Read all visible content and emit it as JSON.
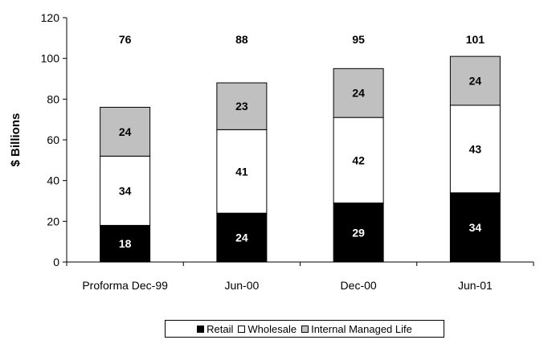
{
  "chart_data": {
    "type": "bar",
    "stacked": true,
    "categories": [
      "Proforma Dec-99",
      "Jun-00",
      "Dec-00",
      "Jun-01"
    ],
    "series": [
      {
        "name": "Retail",
        "values": [
          18,
          24,
          29,
          34
        ],
        "color": "#000000",
        "label_color": "#ffffff"
      },
      {
        "name": "Wholesale",
        "values": [
          34,
          41,
          42,
          43
        ],
        "color": "#ffffff",
        "label_color": "#000000"
      },
      {
        "name": "Internal Managed Life",
        "values": [
          24,
          23,
          24,
          24
        ],
        "color": "#c0c0c0",
        "label_color": "#000000"
      }
    ],
    "totals": [
      "76",
      "88",
      "95",
      "101"
    ],
    "title": "",
    "xlabel": "",
    "ylabel": "$ Billions",
    "ylim": [
      0,
      120
    ],
    "yticks": [
      0,
      20,
      40,
      60,
      80,
      100,
      120
    ],
    "grid": false,
    "legend_position": "bottom"
  }
}
